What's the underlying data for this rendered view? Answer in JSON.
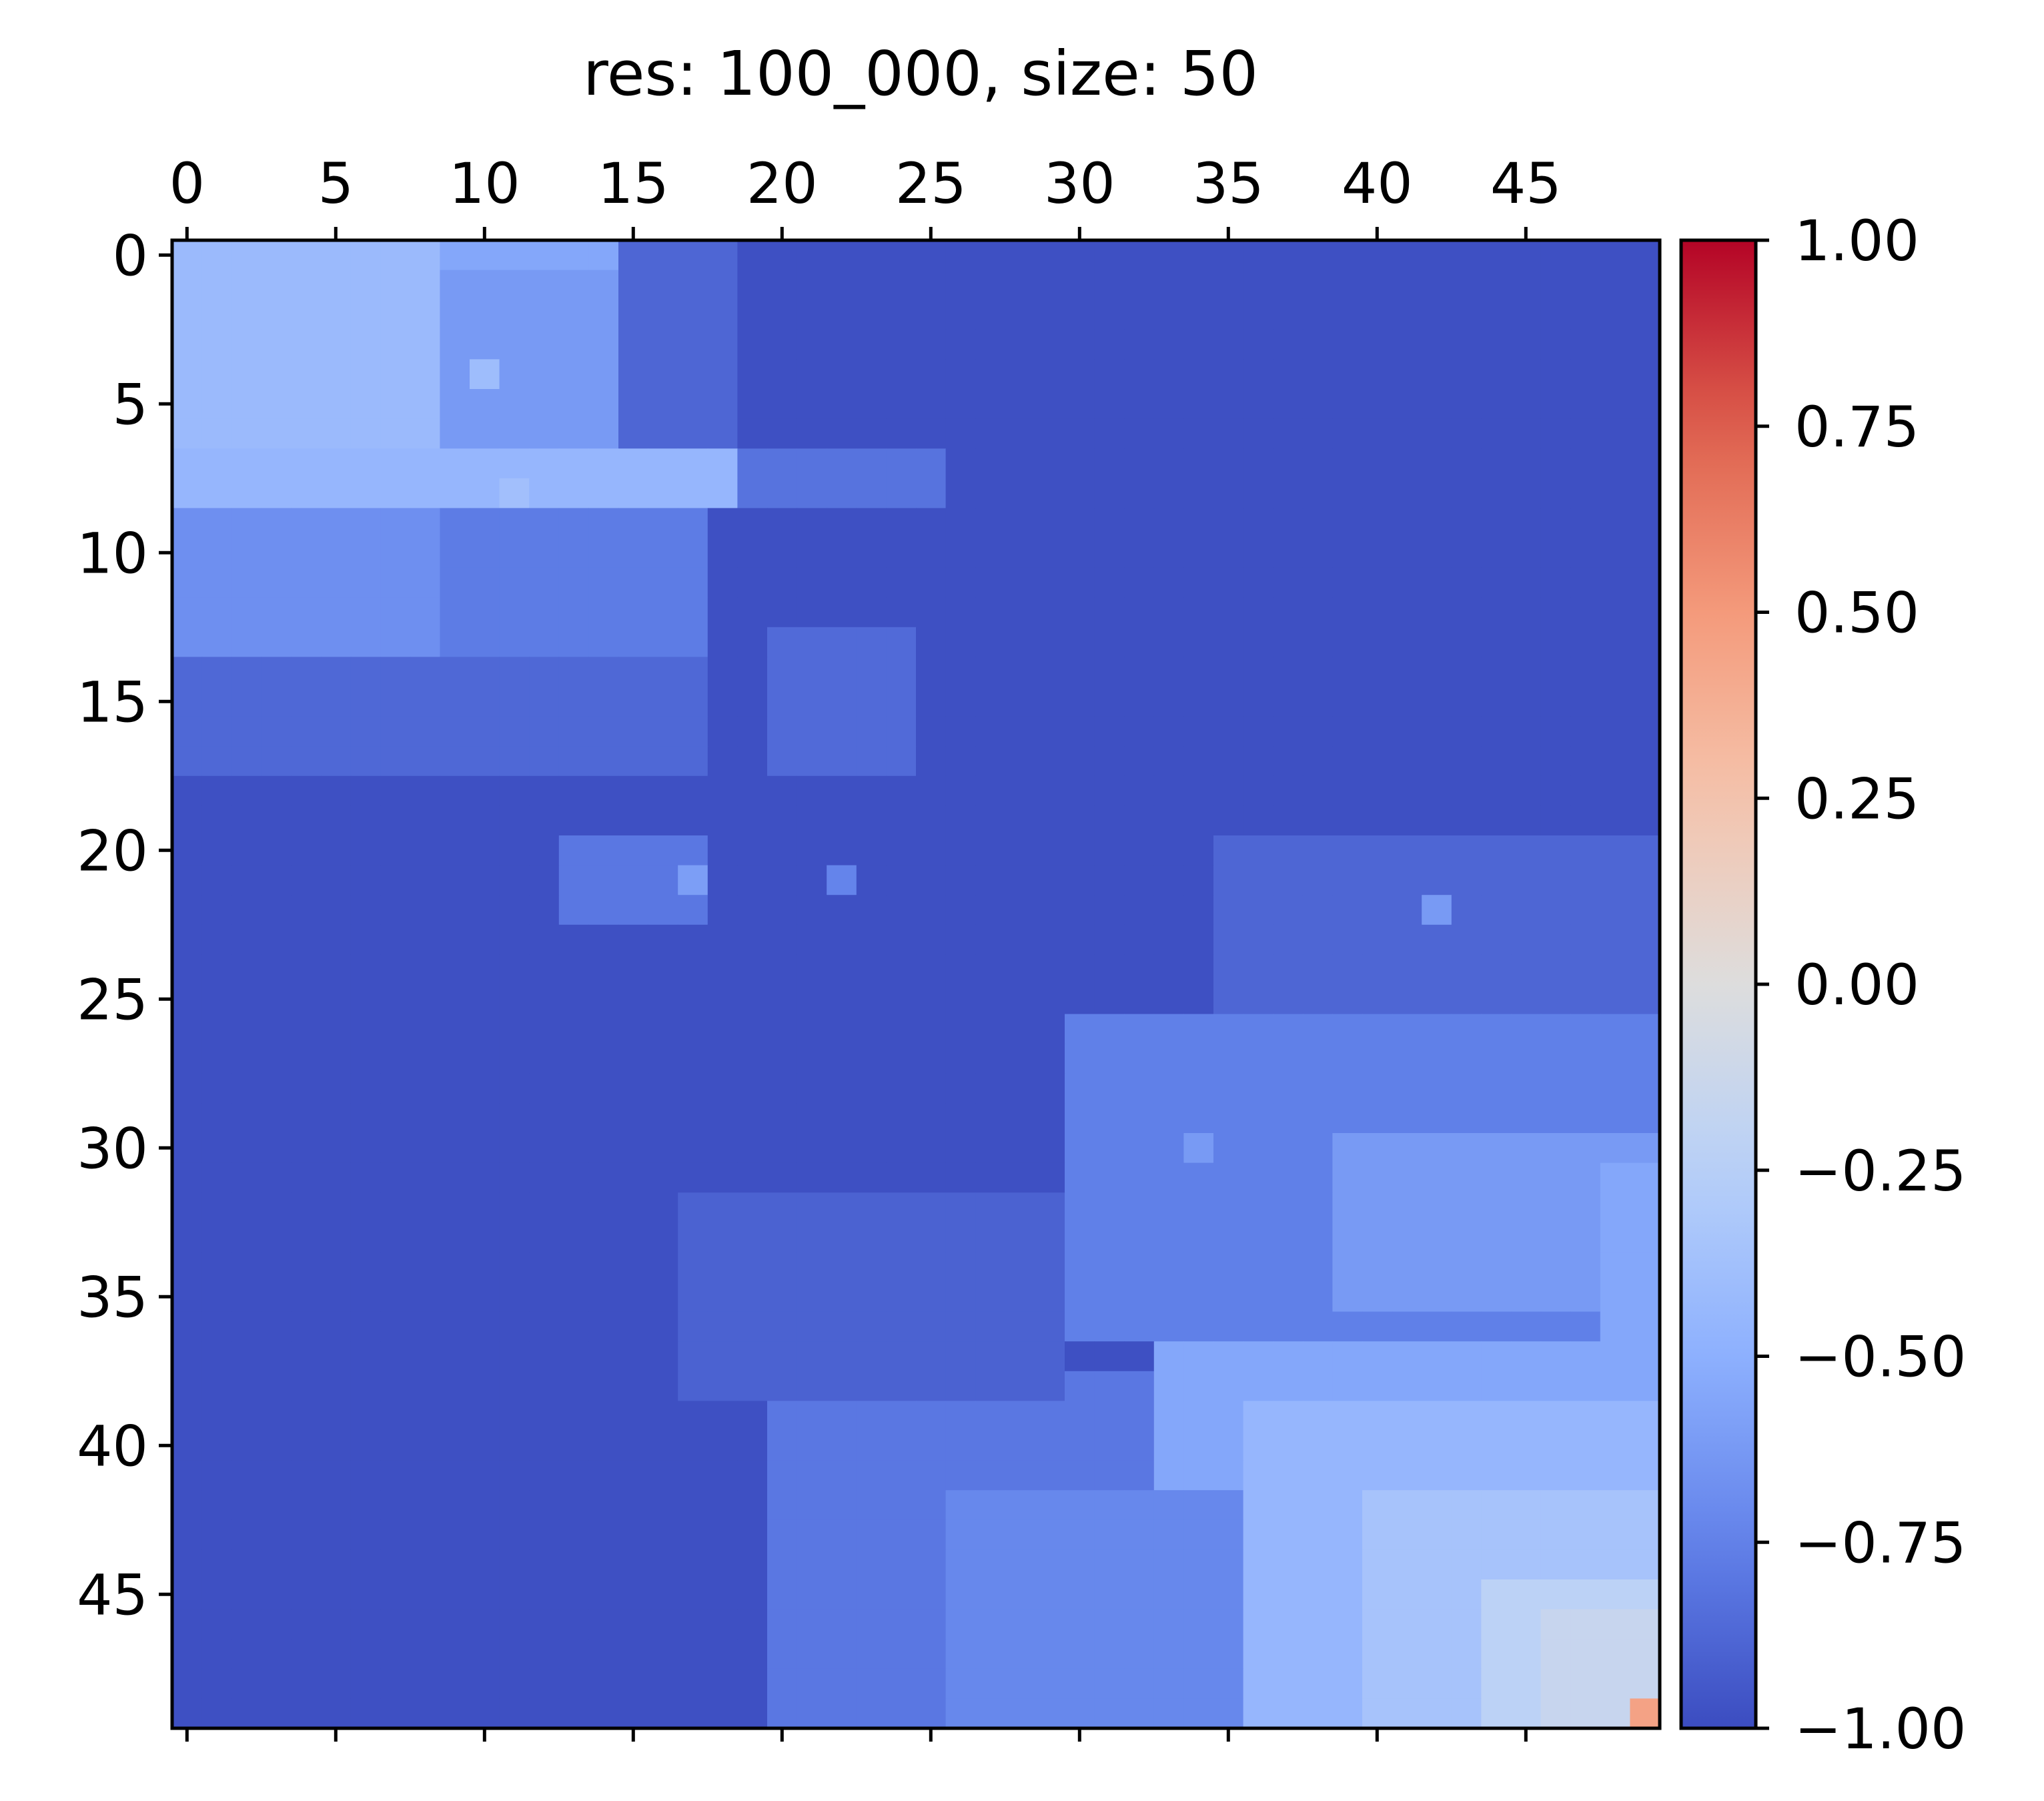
{
  "chart_data": {
    "type": "heatmap",
    "title": "res: 100_000, size: 50",
    "rows": 50,
    "cols": 50,
    "colormap": "coolwarm",
    "vmin": -1.0,
    "vmax": 1.0,
    "x_ticks": [
      0,
      5,
      10,
      15,
      20,
      25,
      30,
      35,
      40,
      45
    ],
    "x_tick_labels": [
      "0",
      "5",
      "10",
      "15",
      "20",
      "25",
      "30",
      "35",
      "40",
      "45"
    ],
    "y_ticks": [
      0,
      5,
      10,
      15,
      20,
      25,
      30,
      35,
      40,
      45
    ],
    "y_tick_labels": [
      "0",
      "5",
      "10",
      "15",
      "20",
      "25",
      "30",
      "35",
      "40",
      "45"
    ],
    "x_axis_position": "top",
    "grid": false,
    "colorbar": {
      "position": "right",
      "ticks": [
        1.0,
        0.75,
        0.5,
        0.25,
        0.0,
        -0.25,
        -0.5,
        -0.75,
        -1.0
      ],
      "tick_labels": [
        "1.00",
        "0.75",
        "0.50",
        "0.25",
        "0.00",
        "−0.25",
        "−0.50",
        "−0.75",
        "−1.00"
      ]
    },
    "background_value": -0.98,
    "patches": [
      {
        "rows": [
          0,
          8
        ],
        "cols": [
          0,
          18
        ],
        "value": -0.55
      },
      {
        "rows": [
          0,
          8
        ],
        "cols": [
          0,
          8
        ],
        "value": -0.42
      },
      {
        "rows": [
          1,
          7
        ],
        "cols": [
          9,
          14
        ],
        "value": -0.62
      },
      {
        "rows": [
          0,
          6
        ],
        "cols": [
          15,
          18
        ],
        "value": -0.88
      },
      {
        "rows": [
          7,
          8
        ],
        "cols": [
          0,
          18
        ],
        "value": -0.45
      },
      {
        "rows": [
          7,
          8
        ],
        "cols": [
          19,
          25
        ],
        "value": -0.82
      },
      {
        "rows": [
          9,
          17
        ],
        "cols": [
          0,
          17
        ],
        "value": -0.78
      },
      {
        "rows": [
          9,
          13
        ],
        "cols": [
          0,
          8
        ],
        "value": -0.68
      },
      {
        "rows": [
          14,
          17
        ],
        "cols": [
          0,
          17
        ],
        "value": -0.87
      },
      {
        "rows": [
          13,
          17
        ],
        "cols": [
          20,
          24
        ],
        "value": -0.86
      },
      {
        "rows": [
          20,
          22
        ],
        "cols": [
          13,
          17
        ],
        "value": -0.8
      },
      {
        "rows": [
          20,
          29
        ],
        "cols": [
          35,
          49
        ],
        "value": -0.88
      },
      {
        "rows": [
          26,
          36
        ],
        "cols": [
          30,
          49
        ],
        "value": -0.76
      },
      {
        "rows": [
          30,
          35
        ],
        "cols": [
          39,
          49
        ],
        "value": -0.62
      },
      {
        "rows": [
          31,
          37
        ],
        "cols": [
          48,
          49
        ],
        "value": -0.55
      },
      {
        "rows": [
          37,
          49
        ],
        "cols": [
          33,
          49
        ],
        "value": -0.55
      },
      {
        "rows": [
          39,
          49
        ],
        "cols": [
          36,
          49
        ],
        "value": -0.45
      },
      {
        "rows": [
          42,
          49
        ],
        "cols": [
          40,
          49
        ],
        "value": -0.35
      },
      {
        "rows": [
          45,
          49
        ],
        "cols": [
          44,
          49
        ],
        "value": -0.22
      },
      {
        "rows": [
          46,
          49
        ],
        "cols": [
          46,
          49
        ],
        "value": -0.15
      },
      {
        "rows": [
          38,
          49
        ],
        "cols": [
          20,
          32
        ],
        "value": -0.8
      },
      {
        "rows": [
          42,
          49
        ],
        "cols": [
          26,
          35
        ],
        "value": -0.72
      },
      {
        "rows": [
          32,
          38
        ],
        "cols": [
          17,
          29
        ],
        "value": -0.9
      }
    ],
    "points": [
      {
        "row": 49,
        "col": 49,
        "value": 0.45
      },
      {
        "row": 21,
        "col": 17,
        "value": -0.6
      },
      {
        "row": 22,
        "col": 42,
        "value": -0.62
      },
      {
        "row": 8,
        "col": 11,
        "value": -0.38
      },
      {
        "row": 4,
        "col": 10,
        "value": -0.4
      },
      {
        "row": 21,
        "col": 22,
        "value": -0.74
      },
      {
        "row": 30,
        "col": 34,
        "value": -0.62
      }
    ]
  }
}
